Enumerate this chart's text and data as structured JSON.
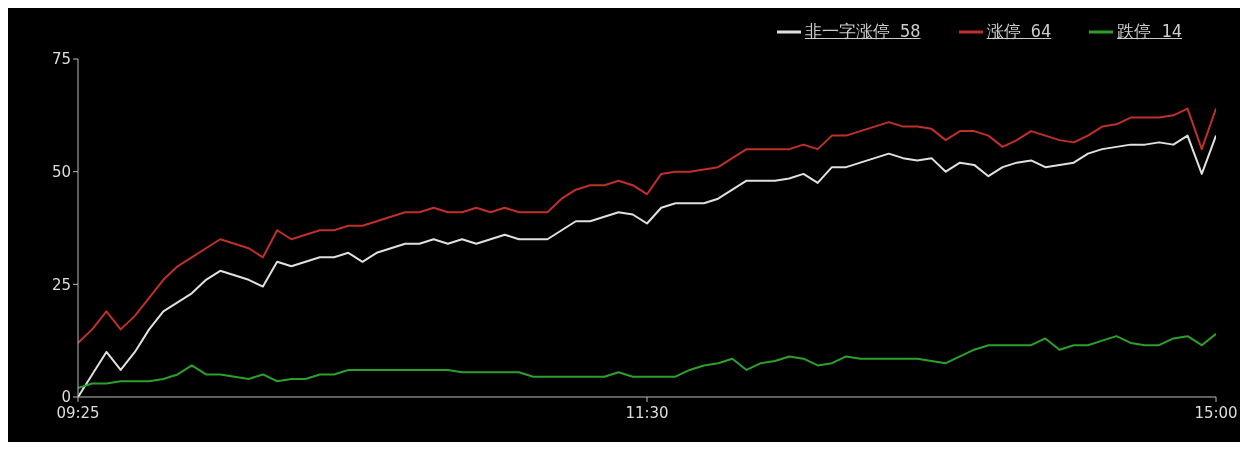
{
  "chart_data": {
    "type": "line",
    "categories": [
      "09:25",
      null,
      null,
      null,
      null,
      null,
      null,
      null,
      null,
      null,
      null,
      null,
      null,
      null,
      null,
      null,
      null,
      null,
      null,
      null,
      null,
      null,
      null,
      null,
      null,
      null,
      null,
      null,
      null,
      null,
      null,
      null,
      null,
      null,
      null,
      null,
      null,
      null,
      null,
      null,
      "11:30",
      null,
      null,
      null,
      null,
      null,
      null,
      null,
      null,
      null,
      null,
      null,
      null,
      null,
      null,
      null,
      null,
      null,
      null,
      null,
      null,
      null,
      null,
      null,
      null,
      null,
      null,
      null,
      null,
      null,
      null,
      null,
      null,
      null,
      null,
      null,
      null,
      null,
      null,
      null,
      "15:00"
    ],
    "series": [
      {
        "name": "非一字涨停 58",
        "color": "#e0e0e0",
        "values": [
          0,
          5,
          10,
          6,
          10,
          15,
          19,
          21,
          23,
          26,
          28,
          27,
          26,
          24.5,
          30,
          29,
          30,
          31,
          31,
          32,
          30,
          32,
          33,
          34,
          34,
          35,
          34,
          35,
          34,
          35,
          36,
          35,
          35,
          35,
          37,
          39,
          39,
          40,
          41,
          40.5,
          38.5,
          42,
          43,
          43,
          43,
          44,
          46,
          48,
          48,
          48,
          48.5,
          49.5,
          47.5,
          51,
          51,
          52,
          53,
          54,
          53,
          52.5,
          53,
          50,
          52,
          51.5,
          49,
          51,
          52,
          52.5,
          51,
          51.5,
          52,
          54,
          55,
          55.5,
          56,
          56,
          56.5,
          56,
          58,
          49.5,
          58
        ]
      },
      {
        "name": "涨停 64",
        "color": "#c0302a",
        "values": [
          12,
          15,
          19,
          15,
          18,
          22,
          26,
          29,
          31,
          33,
          35,
          34,
          33,
          31,
          37,
          35,
          36,
          37,
          37,
          38,
          38,
          39,
          40,
          41,
          41,
          42,
          41,
          41,
          42,
          41,
          42,
          41,
          41,
          41,
          44,
          46,
          47,
          47,
          48,
          47,
          45,
          49.5,
          50,
          50,
          50.5,
          51,
          53,
          55,
          55,
          55,
          55,
          56,
          55,
          58,
          58,
          59,
          60,
          61,
          60,
          60,
          59.5,
          57,
          59,
          59,
          58,
          55.5,
          57,
          59,
          58,
          57,
          56.5,
          58,
          60,
          60.5,
          62,
          62,
          62,
          62.5,
          64,
          55,
          64
        ]
      },
      {
        "name": "跌停 14",
        "color": "#2ca02c",
        "values": [
          2,
          3,
          3,
          3.5,
          3.5,
          3.5,
          4,
          5,
          7,
          5,
          5,
          4.5,
          4,
          5,
          3.5,
          4,
          4,
          5,
          5,
          6,
          6,
          6,
          6,
          6,
          6,
          6,
          6,
          5.5,
          5.5,
          5.5,
          5.5,
          5.5,
          4.5,
          4.5,
          4.5,
          4.5,
          4.5,
          4.5,
          5.5,
          4.5,
          4.5,
          4.5,
          4.5,
          6,
          7,
          7.5,
          8.5,
          6,
          7.5,
          8,
          9,
          8.5,
          7,
          7.5,
          9,
          8.5,
          8.5,
          8.5,
          8.5,
          8.5,
          8,
          7.5,
          9,
          10.5,
          11.5,
          11.5,
          11.5,
          11.5,
          13,
          10.5,
          11.5,
          11.5,
          12.5,
          13.5,
          12,
          11.5,
          11.5,
          13,
          13.5,
          11.5,
          14
        ]
      }
    ],
    "ylim": [
      0,
      75
    ],
    "yticks": [
      0,
      25,
      50,
      75
    ],
    "legend": "top right",
    "line_style": "solid"
  }
}
